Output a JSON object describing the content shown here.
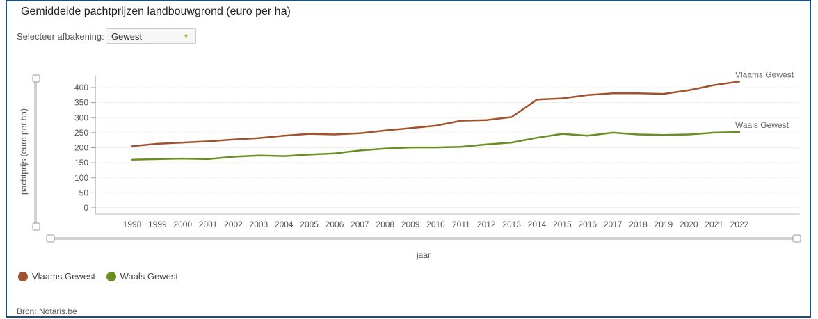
{
  "header": {
    "title": "Gemiddelde pachtprijzen landbouwgrond (euro per ha)"
  },
  "filter": {
    "label": "Selecteer afbakening:",
    "value": "Gewest"
  },
  "footer": {
    "source": "Bron: Notaris.be"
  },
  "chart_data": {
    "type": "line",
    "title": "",
    "xlabel": "jaar",
    "ylabel": "pachtprijs (euro per ha)",
    "ylim": [
      0,
      440
    ],
    "yticks": [
      0,
      50,
      100,
      150,
      200,
      250,
      300,
      350,
      400
    ],
    "grid": true,
    "legend_position": "bottom-left",
    "x": [
      "1998",
      "1999",
      "2000",
      "2001",
      "2002",
      "2003",
      "2004",
      "2005",
      "2006",
      "2007",
      "2008",
      "2009",
      "2010",
      "2011",
      "2012",
      "2013",
      "2014",
      "2015",
      "2016",
      "2017",
      "2018",
      "2019",
      "2020",
      "2021",
      "2022"
    ],
    "series": [
      {
        "name": "Vlaams Gewest",
        "color": "#a0522d",
        "values": [
          205,
          213,
          217,
          221,
          227,
          232,
          240,
          246,
          244,
          248,
          257,
          265,
          273,
          290,
          292,
          302,
          360,
          364,
          375,
          381,
          381,
          379,
          391,
          408,
          420
        ]
      },
      {
        "name": "Waals Gewest",
        "color": "#6b8e23",
        "values": [
          160,
          162,
          164,
          162,
          170,
          174,
          172,
          177,
          181,
          191,
          197,
          201,
          201,
          203,
          211,
          217,
          233,
          246,
          240,
          250,
          244,
          242,
          244,
          250,
          252
        ]
      }
    ]
  }
}
